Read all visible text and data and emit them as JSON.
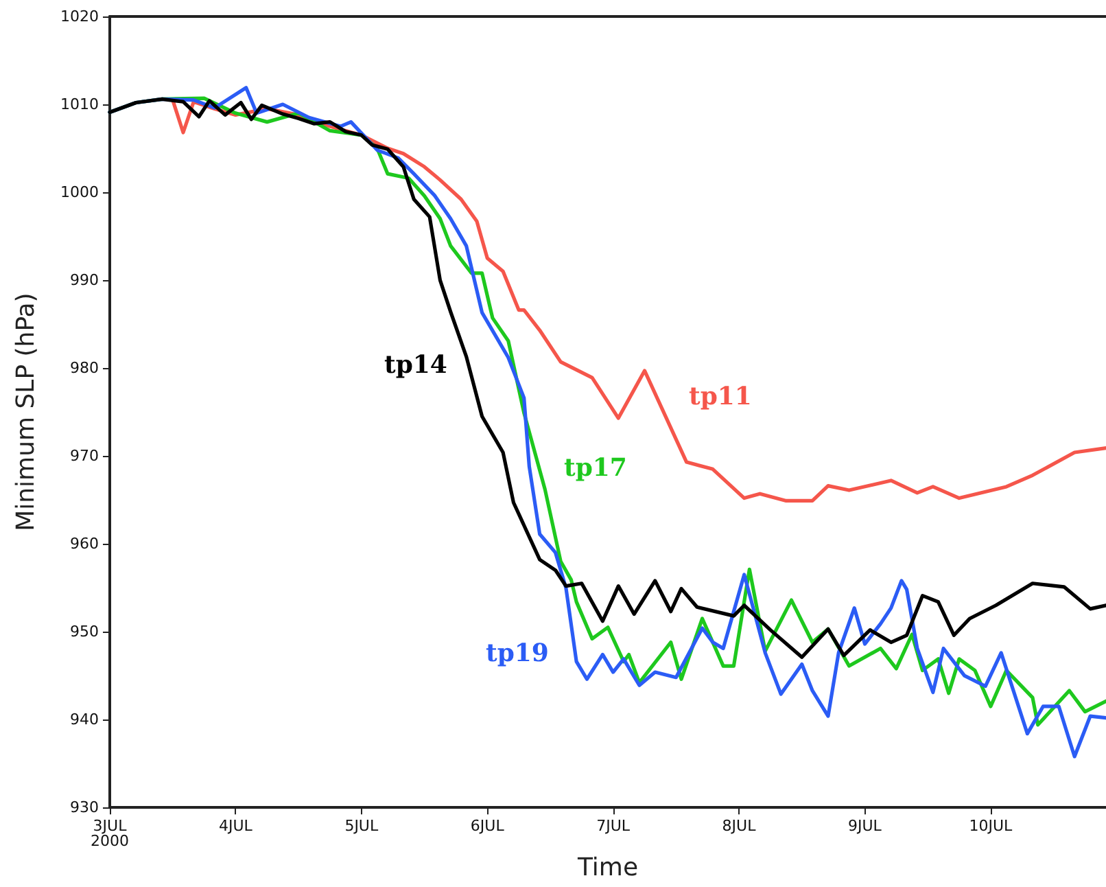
{
  "chart_data": {
    "type": "line",
    "xlabel": "Time",
    "ylabel": "Minimum SLP (hPa)",
    "marker": "none",
    "grid": false,
    "legend": false,
    "xlim": [
      "2000-07-03T00:00",
      "2000-07-10T22:00"
    ],
    "xticks": [
      {
        "value": "2000-07-03",
        "label": "3JUL\n2000"
      },
      {
        "value": "2000-07-04",
        "label": "4JUL"
      },
      {
        "value": "2000-07-05",
        "label": "5JUL"
      },
      {
        "value": "2000-07-06",
        "label": "6JUL"
      },
      {
        "value": "2000-07-07",
        "label": "7JUL"
      },
      {
        "value": "2000-07-08",
        "label": "8JUL"
      },
      {
        "value": "2000-07-09",
        "label": "9JUL"
      },
      {
        "value": "2000-07-10",
        "label": "10JUL"
      }
    ],
    "ylim": [
      930,
      1020
    ],
    "yticks": [
      930,
      940,
      950,
      960,
      970,
      980,
      990,
      1000,
      1010,
      1020
    ],
    "series": [
      {
        "name": "tp11",
        "color": "#f5564b",
        "x": [
          "2000-07-03T12:00",
          "2000-07-03T14:00",
          "2000-07-03T16:00",
          "2000-07-03T20:00",
          "2000-07-04T00:00",
          "2000-07-04T06:00",
          "2000-07-04T12:00",
          "2000-07-04T18:00",
          "2000-07-05T00:00",
          "2000-07-05T05:00",
          "2000-07-05T08:00",
          "2000-07-05T12:00",
          "2000-07-05T15:00",
          "2000-07-05T19:00",
          "2000-07-05T22:00",
          "2000-07-06T00:00",
          "2000-07-06T03:00",
          "2000-07-06T06:00",
          "2000-07-06T07:00",
          "2000-07-06T10:00",
          "2000-07-06T14:00",
          "2000-07-06T20:00",
          "2000-07-07T01:00",
          "2000-07-07T06:00",
          "2000-07-07T14:00",
          "2000-07-07T19:00",
          "2000-07-08T01:00",
          "2000-07-08T04:00",
          "2000-07-08T09:00",
          "2000-07-08T14:00",
          "2000-07-08T17:00",
          "2000-07-08T21:00",
          "2000-07-09T05:00",
          "2000-07-09T10:00",
          "2000-07-09T13:00",
          "2000-07-09T18:00",
          "2000-07-10T03:00",
          "2000-07-10T08:00",
          "2000-07-10T16:00",
          "2000-07-10T22:00"
        ],
        "values": [
          1010.5,
          1006.8,
          1010.3,
          1009.5,
          1008.8,
          1009.5,
          1008.8,
          1007.5,
          1006.5,
          1005.0,
          1004.4,
          1002.9,
          1001.4,
          999.2,
          996.7,
          992.5,
          991.0,
          986.6,
          986.6,
          984.3,
          980.7,
          978.9,
          974.3,
          979.7,
          969.3,
          968.5,
          965.2,
          965.7,
          964.9,
          964.9,
          966.6,
          966.1,
          967.2,
          965.8,
          966.5,
          965.2,
          966.5,
          967.8,
          970.4,
          970.9
        ]
      },
      {
        "name": "tp14",
        "color": "#000000",
        "x": [
          "2000-07-03T00:00",
          "2000-07-03T05:00",
          "2000-07-03T10:00",
          "2000-07-03T14:00",
          "2000-07-03T17:00",
          "2000-07-03T19:00",
          "2000-07-03T22:00",
          "2000-07-04T01:00",
          "2000-07-04T03:00",
          "2000-07-04T05:00",
          "2000-07-04T09:00",
          "2000-07-04T12:00",
          "2000-07-04T15:00",
          "2000-07-04T18:00",
          "2000-07-04T21:00",
          "2000-07-05T00:00",
          "2000-07-05T02:00",
          "2000-07-05T05:00",
          "2000-07-05T08:00",
          "2000-07-05T10:00",
          "2000-07-05T13:00",
          "2000-07-05T15:00",
          "2000-07-05T17:00",
          "2000-07-05T20:00",
          "2000-07-05T23:00",
          "2000-07-06T03:00",
          "2000-07-06T05:00",
          "2000-07-06T07:00",
          "2000-07-06T10:00",
          "2000-07-06T13:00",
          "2000-07-06T15:00",
          "2000-07-06T18:00",
          "2000-07-06T22:00",
          "2000-07-07T01:00",
          "2000-07-07T04:00",
          "2000-07-07T08:00",
          "2000-07-07T11:00",
          "2000-07-07T13:00",
          "2000-07-07T16:00",
          "2000-07-07T23:00",
          "2000-07-08T01:00",
          "2000-07-08T06:00",
          "2000-07-08T12:00",
          "2000-07-08T17:00",
          "2000-07-08T20:00",
          "2000-07-09T01:00",
          "2000-07-09T05:00",
          "2000-07-09T08:00",
          "2000-07-09T11:00",
          "2000-07-09T14:00",
          "2000-07-09T17:00",
          "2000-07-09T20:00",
          "2000-07-10T01:00",
          "2000-07-10T08:00",
          "2000-07-10T14:00",
          "2000-07-10T19:00",
          "2000-07-10T22:00"
        ],
        "values": [
          1009.1,
          1010.2,
          1010.6,
          1010.3,
          1008.6,
          1010.4,
          1008.8,
          1010.2,
          1008.3,
          1009.9,
          1008.9,
          1008.4,
          1007.8,
          1008.0,
          1006.9,
          1006.5,
          1005.4,
          1004.9,
          1002.9,
          999.2,
          997.2,
          990.0,
          986.4,
          981.3,
          974.5,
          970.4,
          964.7,
          962.1,
          958.2,
          957.0,
          955.2,
          955.5,
          951.2,
          955.2,
          952.0,
          955.8,
          952.3,
          954.9,
          952.8,
          951.8,
          953.0,
          950.2,
          947.1,
          950.3,
          947.3,
          950.2,
          948.8,
          949.6,
          954.1,
          953.4,
          949.6,
          951.5,
          953.0,
          955.5,
          955.1,
          952.6,
          953.0
        ]
      },
      {
        "name": "tp17",
        "color": "#1ec81e",
        "x": [
          "2000-07-03T00:00",
          "2000-07-03T05:00",
          "2000-07-03T10:00",
          "2000-07-03T18:00",
          "2000-07-04T00:00",
          "2000-07-04T06:00",
          "2000-07-04T12:00",
          "2000-07-04T18:00",
          "2000-07-05T00:00",
          "2000-07-05T03:00",
          "2000-07-05T05:00",
          "2000-07-05T09:00",
          "2000-07-05T12:00",
          "2000-07-05T15:00",
          "2000-07-05T17:00",
          "2000-07-05T21:00",
          "2000-07-05T23:00",
          "2000-07-06T01:00",
          "2000-07-06T04:00",
          "2000-07-06T07:00",
          "2000-07-06T11:00",
          "2000-07-06T14:00",
          "2000-07-06T16:00",
          "2000-07-06T17:00",
          "2000-07-06T20:00",
          "2000-07-06T23:00",
          "2000-07-07T02:00",
          "2000-07-07T03:00",
          "2000-07-07T05:00",
          "2000-07-07T11:00",
          "2000-07-07T13:00",
          "2000-07-07T17:00",
          "2000-07-07T21:00",
          "2000-07-07T23:00",
          "2000-07-08T02:00",
          "2000-07-08T05:00",
          "2000-07-08T10:00",
          "2000-07-08T14:00",
          "2000-07-08T17:00",
          "2000-07-08T21:00",
          "2000-07-09T03:00",
          "2000-07-09T06:00",
          "2000-07-09T09:00",
          "2000-07-09T11:00",
          "2000-07-09T14:00",
          "2000-07-09T16:00",
          "2000-07-09T18:00",
          "2000-07-09T21:00",
          "2000-07-10T00:00",
          "2000-07-10T03:00",
          "2000-07-10T08:00",
          "2000-07-10T09:00",
          "2000-07-10T15:00",
          "2000-07-10T18:00",
          "2000-07-10T22:00"
        ],
        "values": [
          1009.1,
          1010.2,
          1010.6,
          1010.7,
          1009.0,
          1008.0,
          1009.0,
          1007.0,
          1006.5,
          1005.0,
          1002.1,
          1001.6,
          999.6,
          997.0,
          993.9,
          990.8,
          990.8,
          985.7,
          983.1,
          974.9,
          966.2,
          958.0,
          955.9,
          953.4,
          949.2,
          950.5,
          946.6,
          947.4,
          944.2,
          948.8,
          944.6,
          951.5,
          946.1,
          946.1,
          957.1,
          947.8,
          953.6,
          948.8,
          950.3,
          946.1,
          948.1,
          945.8,
          949.7,
          945.6,
          946.9,
          943.0,
          946.9,
          945.6,
          941.5,
          945.6,
          942.5,
          939.4,
          943.3,
          940.9,
          942.1
        ]
      },
      {
        "name": "tp19",
        "color": "#2b5cf5",
        "x": [
          "2000-07-03T00:00",
          "2000-07-03T05:00",
          "2000-07-03T10:00",
          "2000-07-03T16:00",
          "2000-07-03T20:00",
          "2000-07-04T02:00",
          "2000-07-04T04:00",
          "2000-07-04T09:00",
          "2000-07-04T14:00",
          "2000-07-04T20:00",
          "2000-07-04T22:00",
          "2000-07-05T03:00",
          "2000-07-05T07:00",
          "2000-07-05T10:00",
          "2000-07-05T14:00",
          "2000-07-05T17:00",
          "2000-07-05T20:00",
          "2000-07-05T23:00",
          "2000-07-06T04:00",
          "2000-07-06T07:00",
          "2000-07-06T08:00",
          "2000-07-06T10:00",
          "2000-07-06T13:00",
          "2000-07-06T15:00",
          "2000-07-06T17:00",
          "2000-07-06T19:00",
          "2000-07-06T22:00",
          "2000-07-07T00:00",
          "2000-07-07T02:00",
          "2000-07-07T05:00",
          "2000-07-07T08:00",
          "2000-07-07T12:00",
          "2000-07-07T17:00",
          "2000-07-07T19:00",
          "2000-07-07T21:00",
          "2000-07-08T01:00",
          "2000-07-08T05:00",
          "2000-07-08T08:00",
          "2000-07-08T12:00",
          "2000-07-08T14:00",
          "2000-07-08T17:00",
          "2000-07-08T19:00",
          "2000-07-08T22:00",
          "2000-07-09T00:00",
          "2000-07-09T03:00",
          "2000-07-09T05:00",
          "2000-07-09T07:00",
          "2000-07-09T08:00",
          "2000-07-09T10:00",
          "2000-07-09T13:00",
          "2000-07-09T15:00",
          "2000-07-09T19:00",
          "2000-07-09T23:00",
          "2000-07-10T02:00",
          "2000-07-10T07:00",
          "2000-07-10T10:00",
          "2000-07-10T13:00",
          "2000-07-10T16:00",
          "2000-07-10T19:00",
          "2000-07-10T22:00"
        ],
        "values": [
          1009.1,
          1010.2,
          1010.6,
          1010.5,
          1009.6,
          1011.9,
          1009.0,
          1010.0,
          1008.5,
          1007.5,
          1008.0,
          1004.8,
          1003.9,
          1002.1,
          999.6,
          997.0,
          993.9,
          986.3,
          981.2,
          976.6,
          968.8,
          961.1,
          959.0,
          955.0,
          946.6,
          944.6,
          947.4,
          945.4,
          946.9,
          943.9,
          945.4,
          944.8,
          950.4,
          948.8,
          948.1,
          956.5,
          947.6,
          942.9,
          946.3,
          943.3,
          940.4,
          947.6,
          952.7,
          948.6,
          950.9,
          952.7,
          955.8,
          954.8,
          948.1,
          943.1,
          948.1,
          945.0,
          943.8,
          947.6,
          938.4,
          941.5,
          941.5,
          935.8,
          940.4,
          940.2
        ]
      }
    ]
  }
}
